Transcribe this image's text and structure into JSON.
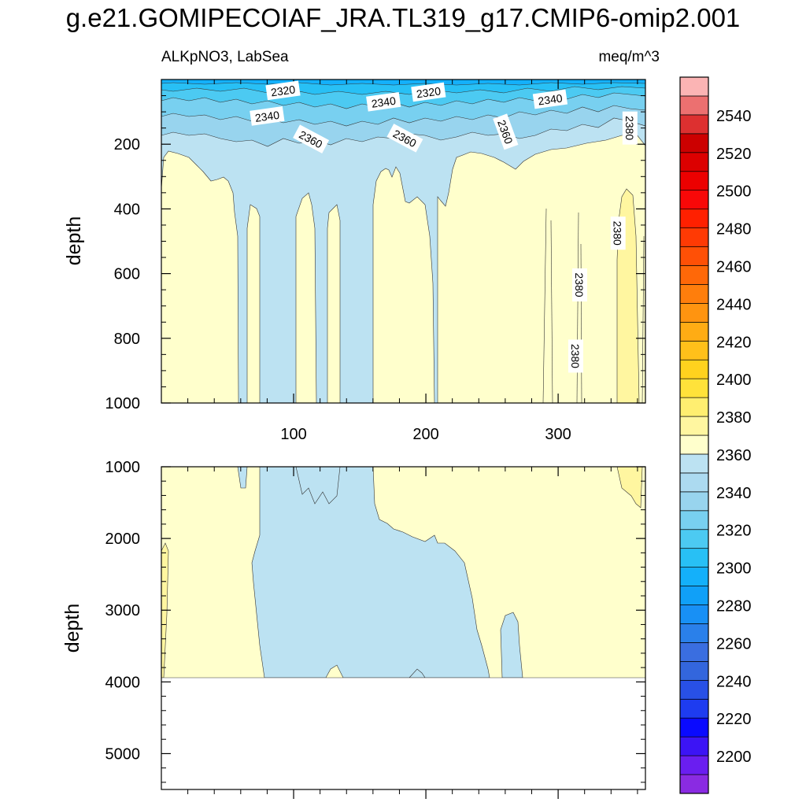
{
  "title": "g.e21.GOMIPECOIAF_JRA.TL319_g17.CMIP6-omip2.001",
  "left_subtitle": "ALKpNO3, LabSea",
  "right_subtitle": "meq/m^3",
  "chart_data": [
    {
      "type": "contour",
      "panel": "upper",
      "ylabel": "depth",
      "xlabel": "",
      "xlim": [
        0,
        366
      ],
      "ylim": [
        1000,
        0
      ],
      "x_ticks": [
        100,
        200,
        300
      ],
      "y_ticks": [
        200,
        400,
        600,
        800,
        1000
      ],
      "contour_labels": [
        {
          "value": "2320",
          "x": 92,
          "y": 35
        },
        {
          "value": "2320",
          "x": 202,
          "y": 40
        },
        {
          "value": "2340",
          "x": 80,
          "y": 114
        },
        {
          "value": "2340",
          "x": 168,
          "y": 70
        },
        {
          "value": "2340",
          "x": 294,
          "y": 62
        },
        {
          "value": "2360",
          "x": 113,
          "y": 185
        },
        {
          "value": "2360",
          "x": 184,
          "y": 182
        },
        {
          "value": "2360",
          "x": 260,
          "y": 162
        },
        {
          "value": "2380",
          "x": 354,
          "y": 150
        },
        {
          "value": "2380",
          "x": 345,
          "y": 475
        },
        {
          "value": "2380",
          "x": 316,
          "y": 635
        },
        {
          "value": "2380",
          "x": 313,
          "y": 855
        }
      ]
    },
    {
      "type": "contour",
      "panel": "lower",
      "ylabel": "depth",
      "xlabel": "",
      "xlim": [
        0,
        366
      ],
      "ylim": [
        5500,
        1000
      ],
      "y_ticks": [
        1000,
        2000,
        3000,
        4000,
        5000
      ],
      "ocean_bottom_depth": 3870
    }
  ],
  "colorbar": {
    "levels": [
      "2200",
      "2220",
      "2240",
      "2260",
      "2280",
      "2300",
      "2320",
      "2340",
      "2360",
      "2380",
      "2400",
      "2420",
      "2440",
      "2460",
      "2480",
      "2500",
      "2520",
      "2540"
    ],
    "colors": [
      "#8a2be2",
      "#6a1ef0",
      "#3c14f5",
      "#0a0aff",
      "#1e3cf0",
      "#2850e6",
      "#3366dd",
      "#3a6ee0",
      "#2a80ea",
      "#1890f5",
      "#10a0f8",
      "#14b0fa",
      "#28c0f5",
      "#4ccaf2",
      "#78d0f0",
      "#98d4ee",
      "#acdaf0",
      "#bce2f2",
      "#ffffcc",
      "#fff6a0",
      "#ffee70",
      "#ffe23a",
      "#ffd21e",
      "#ffc01a",
      "#ffac14",
      "#ff9410",
      "#ff7e0c",
      "#ff6808",
      "#ff5006",
      "#ff3a04",
      "#ff2000",
      "#f80808",
      "#ec0000",
      "#dc0000",
      "#cc0000",
      "#dd3030",
      "#ec7070",
      "#fbb4b4"
    ]
  }
}
